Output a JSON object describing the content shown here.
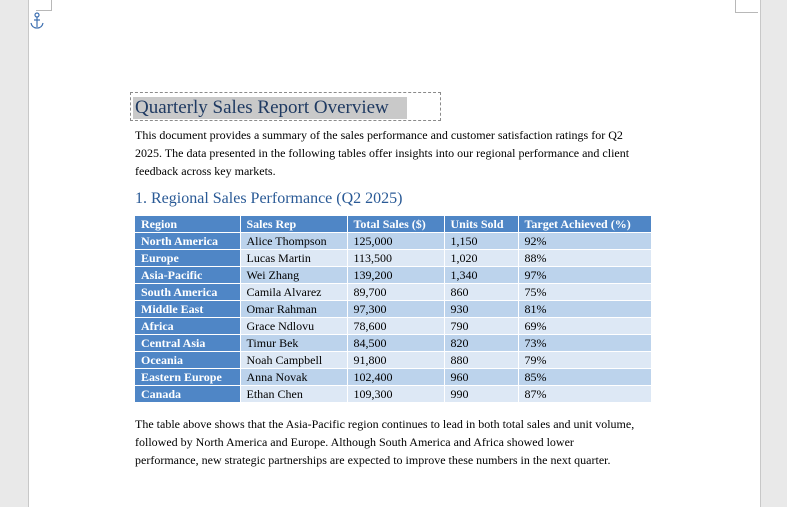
{
  "document": {
    "title": "Quarterly Sales Report Overview",
    "intro": "This document provides a summary of the sales performance and customer satisfaction ratings for Q2 2025. The data presented in the following tables offer insights into our regional performance and client feedback across key markets.",
    "section_heading": "1. Regional Sales Performance (Q2 2025)",
    "conclusion": "The table above shows that the Asia-Pacific region continues to lead in both total sales and unit volume, followed by North America and Europe. Although South America and Africa showed lower performance, new strategic partnerships are expected to improve these numbers in the next quarter."
  },
  "table": {
    "headers": [
      "Region",
      "Sales Rep",
      "Total Sales ($)",
      "Units Sold",
      "Target Achieved (%)"
    ],
    "rows": [
      [
        "North America",
        "Alice Thompson",
        "125,000",
        "1,150",
        "92%"
      ],
      [
        "Europe",
        "Lucas Martin",
        "113,500",
        "1,020",
        "88%"
      ],
      [
        "Asia-Pacific",
        "Wei Zhang",
        "139,200",
        "1,340",
        "97%"
      ],
      [
        "South America",
        "Camila Alvarez",
        "89,700",
        "860",
        "75%"
      ],
      [
        "Middle East",
        "Omar Rahman",
        "97,300",
        "930",
        "81%"
      ],
      [
        "Africa",
        "Grace Ndlovu",
        "78,600",
        "790",
        "69%"
      ],
      [
        "Central Asia",
        "Timur Bek",
        "84,500",
        "820",
        "73%"
      ],
      [
        "Oceania",
        "Noah Campbell",
        "91,800",
        "880",
        "79%"
      ],
      [
        "Eastern Europe",
        "Anna Novak",
        "102,400",
        "960",
        "85%"
      ],
      [
        "Canada",
        "Ethan Chen",
        "109,300",
        "990",
        "87%"
      ]
    ]
  },
  "colors": {
    "header": "#4f86c6",
    "row_odd": "#bcd3ec",
    "row_even": "#dde8f5",
    "title_text": "#1f3a62",
    "heading_text": "#2a5a96"
  },
  "icons": {
    "anchor": "anchor-icon"
  }
}
